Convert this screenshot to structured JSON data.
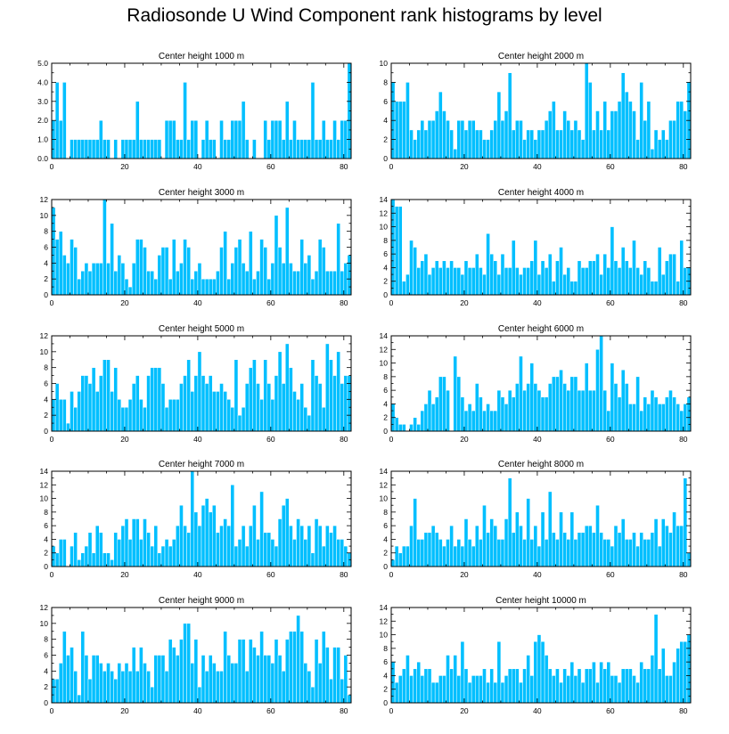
{
  "title": "Radiosonde U Wind Component rank histograms by level",
  "colors": {
    "bar": "#00bfff",
    "bar_edge": "#ffffff",
    "axis": "#000000"
  },
  "chart_data": [
    {
      "type": "bar",
      "title": "Center height 1000 m",
      "xlim": [
        0,
        82
      ],
      "ylim": [
        0,
        5
      ],
      "xticks": [
        "0",
        "20",
        "40",
        "60",
        "80"
      ],
      "yticks": [
        "0.0",
        "1.0",
        "2.0",
        "3.0",
        "4.0",
        "5.0"
      ],
      "values": [
        2,
        4,
        2,
        4,
        0,
        1,
        1,
        1,
        1,
        1,
        1,
        1,
        1,
        2,
        1,
        1,
        0,
        1,
        0,
        1,
        1,
        1,
        1,
        3,
        1,
        1,
        1,
        1,
        1,
        1,
        0,
        2,
        2,
        2,
        1,
        1,
        4,
        1,
        2,
        2,
        0,
        1,
        2,
        1,
        1,
        0,
        2,
        1,
        1,
        2,
        2,
        2,
        3,
        1,
        0,
        1,
        0,
        0,
        2,
        1,
        2,
        2,
        2,
        1,
        3,
        1,
        2,
        1,
        1,
        1,
        1,
        4,
        1,
        1,
        2,
        1,
        1,
        2,
        1,
        2,
        2,
        5
      ]
    },
    {
      "type": "bar",
      "title": "Center height 2000 m",
      "xlim": [
        0,
        82
      ],
      "ylim": [
        0,
        10
      ],
      "xticks": [
        "0",
        "20",
        "40",
        "60",
        "80"
      ],
      "yticks": [
        "0",
        "2",
        "4",
        "6",
        "8",
        "10"
      ],
      "values": [
        8,
        6,
        6,
        6,
        8,
        3,
        2,
        3,
        4,
        3,
        4,
        4,
        5,
        7,
        5,
        4,
        3,
        1,
        4,
        4,
        3,
        4,
        4,
        3,
        3,
        2,
        2,
        3,
        4,
        7,
        4,
        5,
        9,
        3,
        4,
        4,
        2,
        3,
        3,
        2,
        3,
        3,
        4,
        5,
        6,
        3,
        3,
        5,
        4,
        3,
        4,
        3,
        2,
        10,
        8,
        3,
        5,
        3,
        6,
        3,
        5,
        5,
        6,
        9,
        7,
        6,
        5,
        2,
        8,
        4,
        6,
        1,
        3,
        2,
        3,
        2,
        4,
        4,
        6,
        6,
        5,
        8
      ]
    },
    {
      "type": "bar",
      "title": "Center height 3000 m",
      "xlim": [
        0,
        82
      ],
      "ylim": [
        0,
        12
      ],
      "xticks": [
        "0",
        "20",
        "40",
        "60",
        "80"
      ],
      "yticks": [
        "0",
        "2",
        "4",
        "6",
        "8",
        "10",
        "12"
      ],
      "values": [
        11,
        7,
        8,
        5,
        4,
        7,
        6,
        2,
        3,
        4,
        3,
        4,
        4,
        4,
        12,
        4,
        9,
        3,
        5,
        4,
        2,
        1,
        4,
        7,
        7,
        6,
        3,
        3,
        2,
        5,
        6,
        6,
        2,
        7,
        3,
        4,
        7,
        6,
        2,
        3,
        4,
        2,
        2,
        2,
        2,
        3,
        6,
        8,
        2,
        4,
        6,
        7,
        4,
        3,
        8,
        2,
        3,
        7,
        6,
        2,
        4,
        10,
        6,
        4,
        11,
        4,
        3,
        3,
        7,
        4,
        5,
        2,
        3,
        7,
        6,
        3,
        3,
        3,
        9,
        3,
        4,
        5
      ]
    },
    {
      "type": "bar",
      "title": "Center height 4000 m",
      "xlim": [
        0,
        82
      ],
      "ylim": [
        0,
        14
      ],
      "xticks": [
        "0",
        "20",
        "40",
        "60",
        "80"
      ],
      "yticks": [
        "0",
        "2",
        "4",
        "6",
        "8",
        "10",
        "12",
        "14"
      ],
      "values": [
        14,
        13,
        13,
        2,
        3,
        8,
        7,
        4,
        5,
        6,
        3,
        4,
        5,
        4,
        5,
        4,
        5,
        4,
        4,
        3,
        5,
        4,
        4,
        6,
        4,
        3,
        9,
        6,
        5,
        3,
        6,
        4,
        4,
        8,
        4,
        3,
        4,
        4,
        5,
        8,
        3,
        5,
        4,
        6,
        2,
        5,
        7,
        3,
        4,
        2,
        2,
        5,
        4,
        4,
        5,
        5,
        6,
        3,
        6,
        4,
        10,
        5,
        4,
        7,
        5,
        4,
        8,
        4,
        3,
        5,
        4,
        2,
        2,
        7,
        3,
        5,
        6,
        6,
        2,
        8,
        4,
        4
      ]
    },
    {
      "type": "bar",
      "title": "Center height 5000 m",
      "xlim": [
        0,
        82
      ],
      "ylim": [
        0,
        12
      ],
      "xticks": [
        "0",
        "20",
        "40",
        "60",
        "80"
      ],
      "yticks": [
        "0",
        "2",
        "4",
        "6",
        "8",
        "10",
        "12"
      ],
      "values": [
        4,
        6,
        4,
        4,
        1,
        5,
        3,
        5,
        7,
        7,
        6,
        8,
        5,
        7,
        9,
        9,
        5,
        8,
        4,
        3,
        3,
        4,
        6,
        7,
        4,
        3,
        7,
        8,
        8,
        8,
        6,
        3,
        4,
        4,
        4,
        6,
        7,
        9,
        5,
        7,
        10,
        7,
        6,
        7,
        5,
        5,
        6,
        5,
        4,
        3,
        9,
        2,
        3,
        6,
        8,
        9,
        6,
        4,
        9,
        6,
        4,
        7,
        10,
        6,
        11,
        8,
        5,
        4,
        6,
        3,
        2,
        9,
        7,
        6,
        3,
        11,
        9,
        7,
        10,
        6,
        7,
        7
      ]
    },
    {
      "type": "bar",
      "title": "Center height 6000 m",
      "xlim": [
        0,
        82
      ],
      "ylim": [
        0,
        14
      ],
      "xticks": [
        "0",
        "20",
        "40",
        "60",
        "80"
      ],
      "yticks": [
        "0",
        "2",
        "4",
        "6",
        "8",
        "10",
        "12",
        "14"
      ],
      "values": [
        4,
        2,
        1,
        1,
        0,
        1,
        2,
        1,
        3,
        4,
        6,
        4,
        5,
        8,
        8,
        6,
        0,
        11,
        8,
        5,
        3,
        4,
        3,
        7,
        5,
        3,
        4,
        3,
        3,
        6,
        5,
        4,
        6,
        5,
        7,
        11,
        6,
        7,
        10,
        7,
        6,
        5,
        5,
        7,
        8,
        8,
        9,
        7,
        6,
        8,
        8,
        6,
        6,
        10,
        6,
        6,
        12,
        14,
        6,
        3,
        10,
        7,
        5,
        9,
        7,
        4,
        4,
        8,
        3,
        5,
        4,
        6,
        5,
        4,
        4,
        5,
        6,
        5,
        4,
        3,
        4,
        5
      ]
    },
    {
      "type": "bar",
      "title": "Center height 7000 m",
      "xlim": [
        0,
        82
      ],
      "ylim": [
        0,
        14
      ],
      "xticks": [
        "0",
        "20",
        "40",
        "60",
        "80"
      ],
      "yticks": [
        "0",
        "2",
        "4",
        "6",
        "8",
        "10",
        "12",
        "14"
      ],
      "values": [
        3,
        2,
        4,
        4,
        0,
        3,
        5,
        1,
        2,
        3,
        5,
        2,
        6,
        5,
        2,
        2,
        1,
        5,
        4,
        6,
        7,
        4,
        7,
        7,
        4,
        7,
        5,
        3,
        6,
        2,
        3,
        4,
        3,
        4,
        6,
        9,
        6,
        5,
        14,
        8,
        6,
        9,
        10,
        8,
        9,
        5,
        6,
        7,
        6,
        12,
        3,
        4,
        6,
        3,
        6,
        9,
        4,
        11,
        5,
        5,
        4,
        3,
        7,
        9,
        10,
        6,
        4,
        7,
        6,
        4,
        6,
        2,
        7,
        6,
        3,
        6,
        5,
        6,
        4,
        4,
        3,
        2
      ]
    },
    {
      "type": "bar",
      "title": "Center height 8000 m",
      "xlim": [
        0,
        82
      ],
      "ylim": [
        0,
        14
      ],
      "xticks": [
        "0",
        "20",
        "40",
        "60",
        "80"
      ],
      "yticks": [
        "0",
        "2",
        "4",
        "6",
        "8",
        "10",
        "12",
        "14"
      ],
      "values": [
        1,
        3,
        2,
        3,
        3,
        6,
        10,
        4,
        4,
        5,
        5,
        6,
        5,
        4,
        3,
        4,
        6,
        3,
        4,
        3,
        7,
        4,
        3,
        6,
        4,
        9,
        5,
        7,
        6,
        4,
        4,
        7,
        13,
        5,
        8,
        6,
        4,
        10,
        4,
        6,
        3,
        8,
        4,
        11,
        5,
        4,
        8,
        5,
        4,
        8,
        4,
        5,
        5,
        6,
        6,
        5,
        9,
        5,
        4,
        4,
        3,
        6,
        5,
        7,
        4,
        4,
        5,
        3,
        5,
        4,
        4,
        5,
        7,
        3,
        7,
        6,
        5,
        8,
        6,
        6,
        13,
        2
      ]
    },
    {
      "type": "bar",
      "title": "Center height 9000 m",
      "xlim": [
        0,
        82
      ],
      "ylim": [
        0,
        12
      ],
      "xticks": [
        "0",
        "20",
        "40",
        "60",
        "80"
      ],
      "yticks": [
        "0",
        "2",
        "4",
        "6",
        "8",
        "10",
        "12"
      ],
      "values": [
        3,
        3,
        5,
        9,
        6,
        7,
        4,
        1,
        9,
        6,
        3,
        6,
        6,
        5,
        4,
        5,
        4,
        3,
        5,
        4,
        5,
        4,
        7,
        4,
        7,
        5,
        4,
        2,
        6,
        6,
        6,
        4,
        8,
        7,
        6,
        8,
        10,
        10,
        5,
        8,
        2,
        6,
        4,
        6,
        5,
        4,
        4,
        9,
        6,
        5,
        5,
        8,
        8,
        4,
        8,
        7,
        6,
        9,
        6,
        6,
        5,
        8,
        6,
        4,
        8,
        9,
        9,
        11,
        9,
        5,
        4,
        2,
        8,
        5,
        9,
        7,
        3,
        7,
        7,
        3,
        6,
        1
      ]
    },
    {
      "type": "bar",
      "title": "Center height 10000 m",
      "xlim": [
        0,
        82
      ],
      "ylim": [
        0,
        14
      ],
      "xticks": [
        "0",
        "20",
        "40",
        "60",
        "80"
      ],
      "yticks": [
        "0",
        "2",
        "4",
        "6",
        "8",
        "10",
        "12",
        "14"
      ],
      "values": [
        6,
        3,
        4,
        5,
        7,
        4,
        5,
        6,
        4,
        5,
        5,
        3,
        3,
        4,
        4,
        7,
        5,
        7,
        4,
        9,
        5,
        3,
        4,
        4,
        4,
        5,
        3,
        5,
        3,
        9,
        3,
        4,
        5,
        5,
        5,
        3,
        5,
        7,
        4,
        9,
        10,
        9,
        7,
        5,
        4,
        5,
        3,
        5,
        4,
        6,
        4,
        5,
        3,
        5,
        5,
        6,
        3,
        6,
        5,
        6,
        4,
        4,
        3,
        5,
        5,
        5,
        4,
        3,
        6,
        5,
        5,
        7,
        13,
        5,
        8,
        4,
        4,
        6,
        8,
        9,
        9,
        10
      ]
    }
  ]
}
